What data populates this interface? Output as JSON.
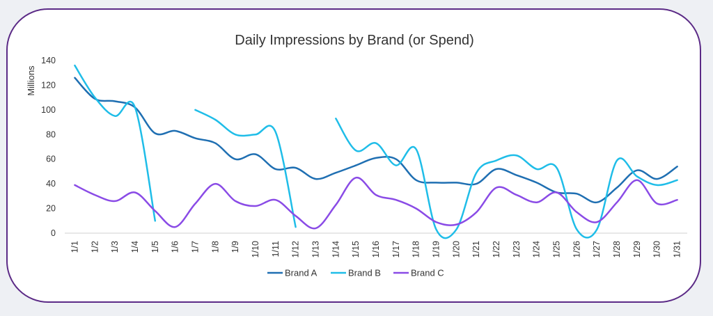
{
  "chart_data": {
    "type": "line",
    "title": "Daily Impressions by Brand (or Spend)",
    "ylabel": "Millions",
    "xlabel": "",
    "ylim": [
      0,
      140
    ],
    "yticks": [
      0,
      20,
      40,
      60,
      80,
      100,
      120,
      140
    ],
    "grid": false,
    "legend_position": "bottom",
    "categories": [
      "1/1",
      "1/2",
      "1/3",
      "1/4",
      "1/5",
      "1/6",
      "1/7",
      "1/8",
      "1/9",
      "1/10",
      "1/11",
      "1/12",
      "1/13",
      "1/14",
      "1/15",
      "1/16",
      "1/17",
      "1/18",
      "1/19",
      "1/20",
      "1/21",
      "1/22",
      "1/23",
      "1/24",
      "1/25",
      "1/26",
      "1/27",
      "1/28",
      "1/29",
      "1/30",
      "1/31"
    ],
    "series": [
      {
        "name": "Brand A",
        "color": "#1f6fb2",
        "values": [
          126,
          109,
          107,
          102,
          81,
          83,
          77,
          73,
          60,
          64,
          52,
          53,
          44,
          49,
          55,
          61,
          60,
          43,
          41,
          41,
          40,
          52,
          47,
          41,
          33,
          32,
          25,
          37,
          51,
          44,
          54
        ]
      },
      {
        "name": "Brand B",
        "color": "#1fbde8",
        "values": [
          136,
          110,
          95,
          102,
          10,
          null,
          100,
          92,
          80,
          80,
          82,
          5,
          null,
          93,
          67,
          73,
          55,
          68,
          3,
          3,
          49,
          59,
          63,
          52,
          53,
          3,
          3,
          59,
          46,
          39,
          43
        ]
      },
      {
        "name": "Brand C",
        "color": "#8a4be6",
        "values": [
          39,
          31,
          26,
          33,
          18,
          5,
          24,
          40,
          26,
          22,
          27,
          14,
          4,
          23,
          45,
          31,
          27,
          20,
          9,
          7,
          17,
          37,
          31,
          25,
          33,
          17,
          9,
          25,
          43,
          24,
          27
        ]
      }
    ]
  }
}
